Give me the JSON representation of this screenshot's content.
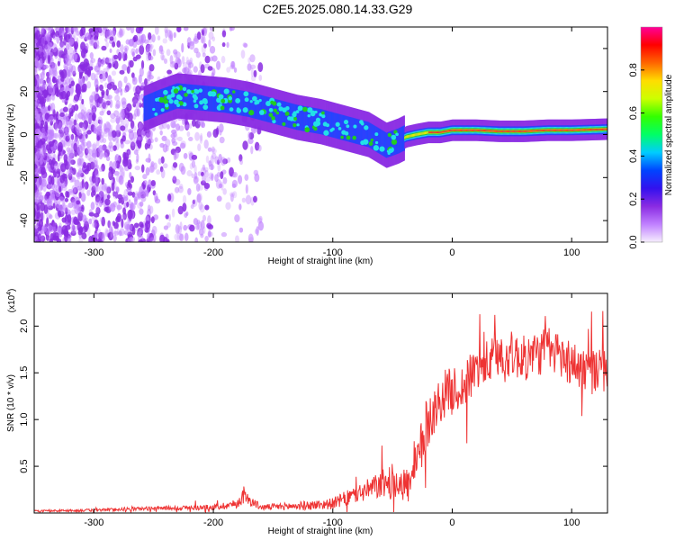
{
  "title": "C2E5.2025.080.14.33.G29",
  "colors": {
    "snr_line": "#ee3333",
    "purple": "#8a2be2",
    "violet": "#c080ff",
    "blue": "#2244ff",
    "cyan": "#22e0e8",
    "green": "#22cc22",
    "yellow": "#eeee00",
    "red": "#ee2222"
  },
  "chart_data": [
    {
      "type": "heatmap",
      "title": "",
      "xlabel": "Height of straight line (km)",
      "ylabel": "Frequency (Hz)",
      "xlim": [
        -350,
        130
      ],
      "ylim": [
        -50,
        50
      ],
      "x_ticks": [
        -300,
        -200,
        -100,
        0,
        100
      ],
      "x_tick_labels": [
        "-300",
        "-200",
        "-100",
        "0",
        "100"
      ],
      "y_ticks": [
        -40,
        -20,
        0,
        20,
        40
      ],
      "y_tick_labels": [
        "-40",
        "-20",
        "0",
        "20",
        "40"
      ],
      "colorbar": {
        "label": "Normalized spectral amplitude",
        "range": [
          0,
          1
        ],
        "ticks": [
          0.0,
          0.2,
          0.4,
          0.6,
          0.8
        ],
        "tick_labels": [
          "0.0",
          "0.2",
          "0.4",
          "0.6",
          "0.8"
        ],
        "colormap": [
          "#f6eefe",
          "#c080ff",
          "#8a2be2",
          "#3311ee",
          "#0044ff",
          "#00ccff",
          "#00ff66",
          "#33ff00",
          "#ccff00",
          "#ffdd00",
          "#ff6600",
          "#ff0000",
          "#ff0099"
        ]
      },
      "ridge": {
        "x": [
          -258,
          -245,
          -230,
          -210,
          -190,
          -170,
          -150,
          -130,
          -110,
          -90,
          -70,
          -55,
          -45,
          -38,
          -30,
          -20,
          -10,
          0,
          20,
          40,
          60,
          80,
          100,
          130
        ],
        "frequency": [
          12,
          15,
          18,
          17,
          16,
          14,
          11,
          8,
          6,
          3,
          0,
          -5,
          -3,
          -1,
          0,
          1,
          1,
          2,
          2,
          1.5,
          1.5,
          2,
          2,
          2.5
        ],
        "amplitude": [
          0.4,
          0.45,
          0.45,
          0.5,
          0.45,
          0.45,
          0.45,
          0.4,
          0.45,
          0.4,
          0.35,
          0.3,
          0.4,
          0.6,
          0.7,
          0.8,
          0.85,
          0.9,
          0.9,
          0.95,
          0.9,
          0.85,
          0.85,
          0.8
        ]
      }
    },
    {
      "type": "line",
      "title": "",
      "xlabel": "Height of straight line (km)",
      "ylabel": "SNR (10 * v/v)",
      "y_exponent_label": "(x10",
      "y_exponent_power": "4",
      "y_exponent_close": ")",
      "xlim": [
        -350,
        130
      ],
      "ylim": [
        0,
        2.35
      ],
      "x_ticks": [
        -300,
        -200,
        -100,
        0,
        100
      ],
      "x_tick_labels": [
        "-300",
        "-200",
        "-100",
        "0",
        "100"
      ],
      "y_ticks": [
        0.5,
        1.0,
        1.5,
        2.0
      ],
      "y_tick_labels": [
        "0.5",
        "1.0",
        "1.5",
        "2.0"
      ],
      "series": [
        {
          "x": [
            -350,
            -300,
            -250,
            -200,
            -180,
            -175,
            -160,
            -140,
            -120,
            -100,
            -90,
            -80,
            -70,
            -60,
            -50,
            -45,
            -40,
            -35,
            -30,
            -25,
            -20,
            -15,
            -10,
            -5,
            0,
            10,
            20,
            30,
            40,
            50,
            60,
            70,
            80,
            90,
            100,
            110,
            120,
            130
          ],
          "values": [
            0.02,
            0.03,
            0.05,
            0.06,
            0.1,
            0.18,
            0.06,
            0.07,
            0.08,
            0.1,
            0.15,
            0.2,
            0.25,
            0.3,
            0.35,
            0.35,
            0.3,
            0.3,
            0.5,
            0.75,
            1.0,
            1.1,
            1.2,
            1.3,
            1.3,
            1.35,
            1.55,
            1.6,
            1.7,
            1.7,
            1.65,
            1.7,
            1.75,
            1.7,
            1.6,
            1.55,
            1.5,
            1.55
          ],
          "noise": [
            0.01,
            0.015,
            0.02,
            0.03,
            0.05,
            0.08,
            0.03,
            0.04,
            0.05,
            0.06,
            0.08,
            0.1,
            0.12,
            0.15,
            0.18,
            0.2,
            0.2,
            0.2,
            0.25,
            0.3,
            0.3,
            0.25,
            0.25,
            0.25,
            0.25,
            0.25,
            0.25,
            0.25,
            0.25,
            0.25,
            0.25,
            0.25,
            0.25,
            0.25,
            0.25,
            0.25,
            0.25,
            0.25
          ]
        }
      ]
    }
  ]
}
